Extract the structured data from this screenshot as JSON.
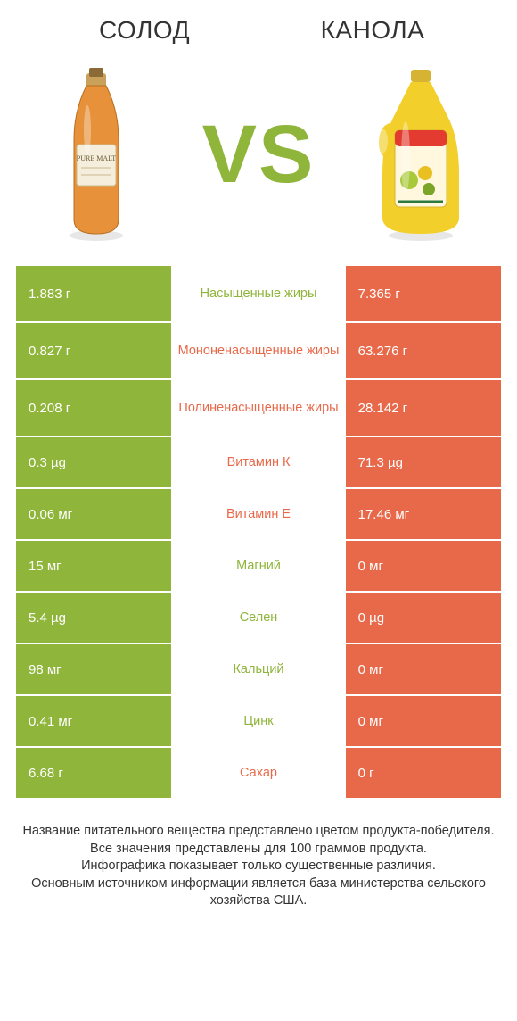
{
  "title_left": "СОЛОД",
  "title_right": "КАНОЛА",
  "vs": "VS",
  "colors": {
    "green": "#8fb53b",
    "orange": "#e8694a",
    "text": "#333333",
    "bg": "#ffffff"
  },
  "table": {
    "left_cell_color": "#8fb53b",
    "right_cell_color": "#e8694a",
    "rows": [
      {
        "left": "1.883 г",
        "label": "Насыщенные жиры",
        "right": "7.365 г",
        "mid_color": "green",
        "tall": true
      },
      {
        "left": "0.827 г",
        "label": "Мононенасыщенные жиры",
        "right": "63.276 г",
        "mid_color": "orange",
        "tall": true
      },
      {
        "left": "0.208 г",
        "label": "Полиненасыщенные жиры",
        "right": "28.142 г",
        "mid_color": "orange",
        "tall": true
      },
      {
        "left": "0.3 µg",
        "label": "Витамин К",
        "right": "71.3 µg",
        "mid_color": "orange",
        "tall": false
      },
      {
        "left": "0.06 мг",
        "label": "Витамин Е",
        "right": "17.46 мг",
        "mid_color": "orange",
        "tall": false
      },
      {
        "left": "15 мг",
        "label": "Магний",
        "right": "0 мг",
        "mid_color": "green",
        "tall": false
      },
      {
        "left": "5.4 µg",
        "label": "Селен",
        "right": "0 µg",
        "mid_color": "green",
        "tall": false
      },
      {
        "left": "98 мг",
        "label": "Кальций",
        "right": "0 мг",
        "mid_color": "green",
        "tall": false
      },
      {
        "left": "0.41 мг",
        "label": "Цинк",
        "right": "0 мг",
        "mid_color": "green",
        "tall": false
      },
      {
        "left": "6.68 г",
        "label": "Сахар",
        "right": "0 г",
        "mid_color": "orange",
        "tall": false
      }
    ]
  },
  "footer_lines": [
    "Название питательного вещества представлено цветом продукта-победителя.",
    "Все значения представлены для 100 граммов продукта.",
    "Инфографика показывает только существенные различия.",
    "Основным источником информации является база министерства сельского хозяйства США."
  ]
}
